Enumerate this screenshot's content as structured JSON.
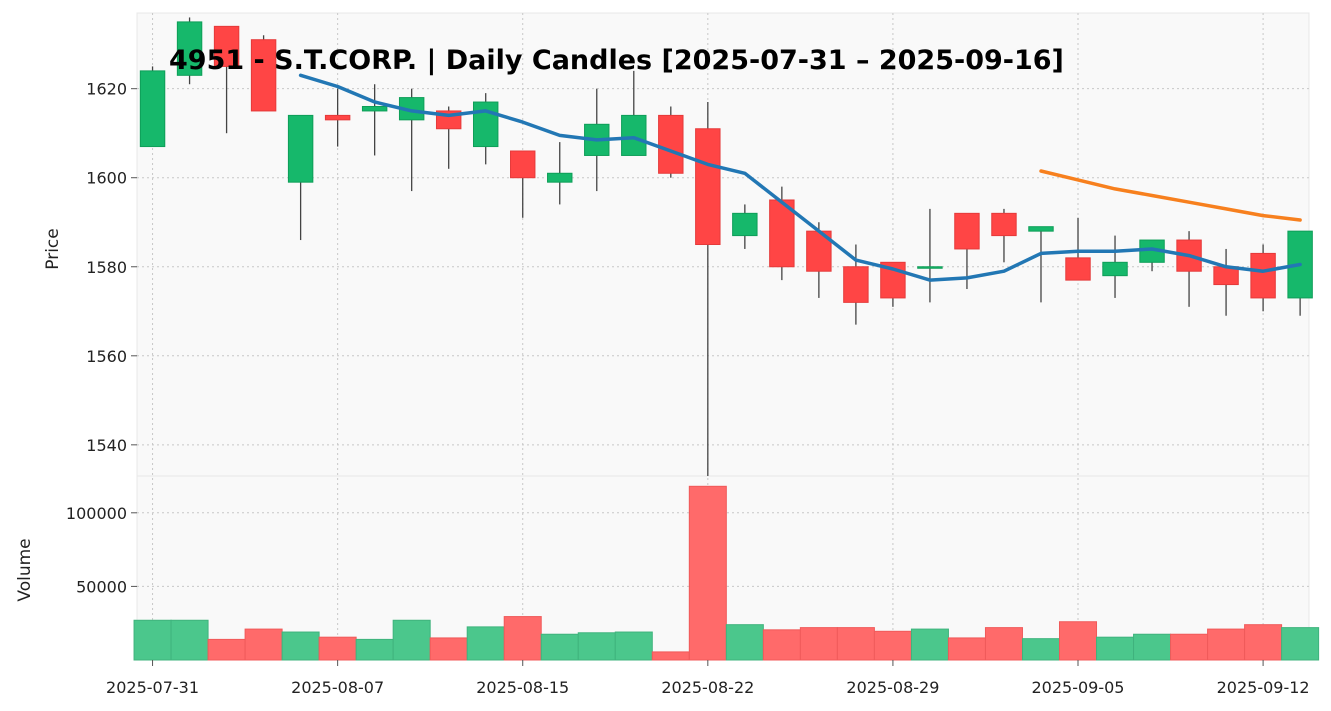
{
  "chart_data": {
    "type": "candlestick",
    "title": "4951 - S.T.CORP. | Daily Candles [2025-07-31 – 2025-09-16]",
    "price_axis": {
      "label": "Price",
      "ylim": [
        1533,
        1637
      ],
      "ticks": [
        1540,
        1560,
        1580,
        1600,
        1620
      ]
    },
    "volume_axis": {
      "label": "Volume",
      "ylim": [
        0,
        125000
      ],
      "ticks": [
        50000,
        100000
      ]
    },
    "x_tick_labels": [
      {
        "label": "2025-07-31",
        "index": 0
      },
      {
        "label": "2025-08-07",
        "index": 5
      },
      {
        "label": "2025-08-15",
        "index": 10
      },
      {
        "label": "2025-08-22",
        "index": 15
      },
      {
        "label": "2025-08-29",
        "index": 20
      },
      {
        "label": "2025-09-05",
        "index": 25
      },
      {
        "label": "2025-09-12",
        "index": 30
      }
    ],
    "grid": true,
    "colors": {
      "up": "#16b86b",
      "down": "#ff4545",
      "up_volume": "#4bc78c",
      "down_volume": "#ff6a6a",
      "ma_short": "#2277b4",
      "ma_long": "#f7801e",
      "background": "#f9f9f9"
    },
    "candles": [
      {
        "o": 1607,
        "h": 1625,
        "l": 1607,
        "c": 1624,
        "v": 27000
      },
      {
        "o": 1623,
        "h": 1636,
        "l": 1621,
        "c": 1635,
        "v": 27000
      },
      {
        "o": 1634,
        "h": 1634,
        "l": 1610,
        "c": 1625,
        "v": 14000
      },
      {
        "o": 1631,
        "h": 1632,
        "l": 1615,
        "c": 1615,
        "v": 21000
      },
      {
        "o": 1599,
        "h": 1614,
        "l": 1586,
        "c": 1614,
        "v": 19000
      },
      {
        "o": 1614,
        "h": 1620,
        "l": 1607,
        "c": 1613,
        "v": 15500
      },
      {
        "o": 1615,
        "h": 1621,
        "l": 1605,
        "c": 1616,
        "v": 14000
      },
      {
        "o": 1613,
        "h": 1620,
        "l": 1597,
        "c": 1618,
        "v": 27000
      },
      {
        "o": 1615,
        "h": 1616,
        "l": 1602,
        "c": 1611,
        "v": 15000
      },
      {
        "o": 1607,
        "h": 1619,
        "l": 1603,
        "c": 1617,
        "v": 22500
      },
      {
        "o": 1606,
        "h": 1606,
        "l": 1591,
        "c": 1600,
        "v": 29500
      },
      {
        "o": 1599,
        "h": 1608,
        "l": 1594,
        "c": 1601,
        "v": 17500
      },
      {
        "o": 1605,
        "h": 1620,
        "l": 1597,
        "c": 1612,
        "v": 18500
      },
      {
        "o": 1605,
        "h": 1624,
        "l": 1605,
        "c": 1614,
        "v": 19000
      },
      {
        "o": 1614,
        "h": 1616,
        "l": 1600,
        "c": 1601,
        "v": 5500
      },
      {
        "o": 1611,
        "h": 1617,
        "l": 1533,
        "c": 1585,
        "v": 118000
      },
      {
        "o": 1587,
        "h": 1594,
        "l": 1584,
        "c": 1592,
        "v": 24000
      },
      {
        "o": 1595,
        "h": 1598,
        "l": 1577,
        "c": 1580,
        "v": 20500
      },
      {
        "o": 1588,
        "h": 1590,
        "l": 1573,
        "c": 1579,
        "v": 22000
      },
      {
        "o": 1580,
        "h": 1585,
        "l": 1567,
        "c": 1572,
        "v": 22000
      },
      {
        "o": 1581,
        "h": 1581,
        "l": 1571,
        "c": 1573,
        "v": 19500
      },
      {
        "o": 1580,
        "h": 1593,
        "l": 1572,
        "c": 1580,
        "v": 21000
      },
      {
        "o": 1592,
        "h": 1592,
        "l": 1575,
        "c": 1584,
        "v": 15000
      },
      {
        "o": 1592,
        "h": 1593,
        "l": 1581,
        "c": 1587,
        "v": 22000
      },
      {
        "o": 1588,
        "h": 1589,
        "l": 1572,
        "c": 1589,
        "v": 14500
      },
      {
        "o": 1582,
        "h": 1591,
        "l": 1577,
        "c": 1577,
        "v": 26000
      },
      {
        "o": 1578,
        "h": 1587,
        "l": 1573,
        "c": 1581,
        "v": 15500
      },
      {
        "o": 1581,
        "h": 1586,
        "l": 1579,
        "c": 1586,
        "v": 17500
      },
      {
        "o": 1586,
        "h": 1588,
        "l": 1571,
        "c": 1579,
        "v": 17500
      },
      {
        "o": 1580,
        "h": 1584,
        "l": 1569,
        "c": 1576,
        "v": 21000
      },
      {
        "o": 1583,
        "h": 1585,
        "l": 1570,
        "c": 1573,
        "v": 24000
      },
      {
        "o": 1573,
        "h": 1588,
        "l": 1569,
        "c": 1588,
        "v": 22000
      }
    ],
    "ma_short": [
      null,
      null,
      null,
      null,
      1623,
      1620.5,
      1617,
      1615,
      1614,
      1615,
      1612.5,
      1609.5,
      1608.5,
      1609,
      1606,
      1603,
      1601,
      1594.5,
      1588,
      1581.5,
      1579.5,
      1577,
      1577.5,
      1579,
      1583,
      1583.5,
      1583.5,
      1584,
      1582.5,
      1580,
      1579,
      1580.5
    ],
    "ma_long": [
      null,
      null,
      null,
      null,
      null,
      null,
      null,
      null,
      null,
      null,
      null,
      null,
      null,
      null,
      null,
      null,
      null,
      null,
      null,
      null,
      null,
      null,
      null,
      null,
      1601.5,
      1599.5,
      1597.5,
      1596,
      1594.5,
      1593,
      1591.5,
      1590.5
    ]
  }
}
